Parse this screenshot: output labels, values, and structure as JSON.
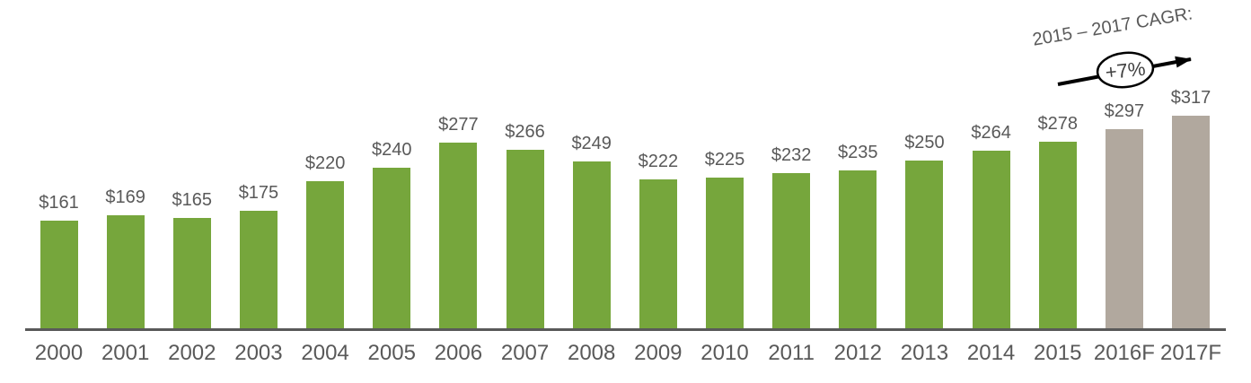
{
  "chart_data": {
    "type": "bar",
    "title": "",
    "xlabel": "",
    "ylabel": "",
    "categories": [
      "2000",
      "2001",
      "2002",
      "2003",
      "2004",
      "2005",
      "2006",
      "2007",
      "2008",
      "2009",
      "2010",
      "2011",
      "2012",
      "2013",
      "2014",
      "2015",
      "2016F",
      "2017F"
    ],
    "values": [
      161,
      169,
      165,
      175,
      220,
      240,
      277,
      266,
      249,
      222,
      225,
      232,
      235,
      250,
      264,
      278,
      297,
      317
    ],
    "value_labels": [
      "$161",
      "$169",
      "$165",
      "$175",
      "$220",
      "$240",
      "$277",
      "$266",
      "$249",
      "$222",
      "$225",
      "$232",
      "$235",
      "$250",
      "$264",
      "$278",
      "$297",
      "$317"
    ],
    "forecast_indices": [
      16,
      17
    ],
    "ylim": [
      0,
      488
    ],
    "grid": false,
    "legend": false,
    "colors": {
      "actual_bar": "#76A63C",
      "forecast_bar": "#B1A89E",
      "label_text": "#595959",
      "axis_line": "#595959",
      "arrow": "#000000",
      "ellipse_fill": "#ffffff",
      "ellipse_stroke": "#000000",
      "cagr_value_text": "#404040"
    }
  },
  "annotation": {
    "label": "2015 – 2017 CAGR:",
    "value": "+7%"
  }
}
